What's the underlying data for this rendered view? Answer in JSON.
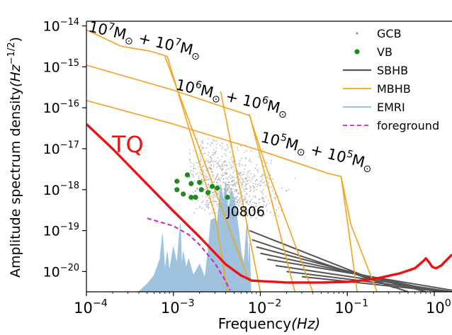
{
  "chart_data": {
    "type": "line",
    "xlabel_parts": {
      "main": "Frequency",
      "unit": "(Hz)"
    },
    "ylabel_parts": {
      "main": "Amplitude spectrum density",
      "unit_open": "(Hz",
      "unit_exp": "−1/2",
      "unit_close": ")"
    },
    "xscale": "log",
    "yscale": "log",
    "xlim": [
      0.0001,
      1.6
    ],
    "ylim": [
      3.2e-21,
      1.3e-14
    ],
    "x_ticks": [
      {
        "value": 0.0001,
        "base": "10",
        "exp": "−4"
      },
      {
        "value": 0.001,
        "base": "10",
        "exp": "−3"
      },
      {
        "value": 0.01,
        "base": "10",
        "exp": "−2"
      },
      {
        "value": 0.1,
        "base": "10",
        "exp": "−1"
      },
      {
        "value": 1,
        "base": "10",
        "exp": "0"
      }
    ],
    "y_ticks": [
      {
        "value": 1e-14,
        "base": "10",
        "exp": "−14"
      },
      {
        "value": 1e-15,
        "base": "10",
        "exp": "−15"
      },
      {
        "value": 1e-16,
        "base": "10",
        "exp": "−16"
      },
      {
        "value": 1e-17,
        "base": "10",
        "exp": "−17"
      },
      {
        "value": 1e-18,
        "base": "10",
        "exp": "−18"
      },
      {
        "value": 1e-19,
        "base": "10",
        "exp": "−19"
      },
      {
        "value": 1e-20,
        "base": "10",
        "exp": "−20"
      }
    ],
    "legend": {
      "placement": "top-right",
      "entries": [
        {
          "label": "GCB",
          "marker": "dot",
          "color": "#9a9a9a"
        },
        {
          "label": "VB",
          "marker": "circle",
          "color": "#1f8a1f"
        },
        {
          "label": "SBHB",
          "marker": "line",
          "color": "#555555"
        },
        {
          "label": "MBHB",
          "marker": "line",
          "color": "#f2a31b"
        },
        {
          "label": "EMRI",
          "marker": "line",
          "color": "#8fb9d9"
        },
        {
          "label": "foreground",
          "marker": "dashed",
          "color": "#cc1fcc"
        }
      ]
    },
    "annotations": [
      {
        "id": "tq",
        "text": "TQ",
        "color": "#ee1111"
      },
      {
        "id": "j0806",
        "text": "J0806",
        "color": "#000000"
      },
      {
        "id": "m7",
        "text_a": "10",
        "exp_a": "7",
        "sym_a": "M",
        "sub_a": "⊙",
        "plus": "+",
        "text_b": "10",
        "exp_b": "7",
        "sym_b": "M",
        "sub_b": "⊙"
      },
      {
        "id": "m6",
        "text_a": "10",
        "exp_a": "6",
        "sym_a": "M",
        "sub_a": "⊙",
        "plus": "+",
        "text_b": "10",
        "exp_b": "6",
        "sym_b": "M",
        "sub_b": "⊙"
      },
      {
        "id": "m5",
        "text_a": "10",
        "exp_a": "5",
        "sym_a": "M",
        "sub_a": "⊙",
        "plus": "+",
        "text_b": "10",
        "exp_b": "5",
        "sym_b": "M",
        "sub_b": "⊙"
      }
    ],
    "series": [
      {
        "name": "TQ",
        "color": "#ee1111",
        "style": "solid",
        "points": [
          [
            0.0001,
            4e-17
          ],
          [
            0.0002,
            1e-17
          ],
          [
            0.0004,
            2.2e-18
          ],
          [
            0.0007,
            6.5e-19
          ],
          [
            0.001,
            3e-19
          ],
          [
            0.002,
            7e-20
          ],
          [
            0.004,
            1.5e-20
          ],
          [
            0.006,
            8e-21
          ],
          [
            0.008,
            6e-21
          ],
          [
            0.02,
            5.4e-21
          ],
          [
            0.05,
            5.4e-21
          ],
          [
            0.1,
            5.6e-21
          ],
          [
            0.2,
            6.5e-21
          ],
          [
            0.4,
            9e-21
          ],
          [
            0.6,
            1.2e-20
          ],
          [
            0.75,
            1.8e-20
          ],
          [
            0.8,
            2.1e-20
          ],
          [
            0.87,
            1.7e-20
          ],
          [
            0.95,
            1.3e-20
          ],
          [
            1.05,
            1.2e-20
          ],
          [
            1.2,
            1.4e-20
          ],
          [
            1.6,
            2.6e-20
          ]
        ]
      },
      {
        "name": "MBHB",
        "color": "#f2a31b",
        "style": "solid",
        "tracks": [
          [
            [
              0.0001,
              8e-15
            ],
            [
              0.00025,
              3.2e-15
            ],
            [
              0.00055,
              2.4e-15
            ],
            [
              0.00085,
              1.8e-15
            ],
            [
              0.003,
              2.5e-19
            ],
            [
              0.0042,
              3.2e-21
            ]
          ],
          [
            [
              0.0001,
              1.1e-15
            ],
            [
              0.001,
              2.7e-16
            ],
            [
              0.0035,
              1.1e-16
            ],
            [
              0.0075,
              6.5e-17
            ],
            [
              0.012,
              3e-18
            ],
            [
              0.04,
              3.2e-21
            ]
          ],
          [
            [
              0.0001,
              1.5e-16
            ],
            [
              0.001,
              4e-17
            ],
            [
              0.01,
              9e-18
            ],
            [
              0.06,
              2.5e-18
            ],
            [
              0.085,
              2.1e-18
            ],
            [
              0.11,
              1.4e-19
            ],
            [
              0.22,
              3.2e-21
            ]
          ],
          [
            [
              0.0008,
              1.8e-15
            ],
            [
              0.0075,
              5.5e-21
            ]
          ],
          [
            [
              0.0035,
              2.5e-16
            ],
            [
              0.01,
              3.2e-21
            ]
          ],
          [
            [
              0.0075,
              7e-17
            ],
            [
              0.025,
              3.2e-21
            ]
          ],
          [
            [
              0.085,
              2.1e-18
            ],
            [
              0.13,
              3.2e-21
            ]
          ]
        ]
      },
      {
        "name": "SBHB",
        "color": "#555555",
        "style": "solid",
        "tracks": [
          [
            [
              0.0075,
              1e-19
            ],
            [
              0.35,
              4e-21
            ]
          ],
          [
            [
              0.008,
              6e-20
            ],
            [
              0.5,
              3.2e-21
            ]
          ],
          [
            [
              0.009,
              4e-20
            ],
            [
              0.8,
              3.2e-21
            ]
          ],
          [
            [
              0.01,
              2.8e-20
            ],
            [
              1.2,
              3.2e-21
            ]
          ],
          [
            [
              0.012,
              2e-20
            ],
            [
              1.6,
              3.5e-21
            ]
          ],
          [
            [
              0.015,
              1.4e-20
            ],
            [
              1.6,
              3.2e-21
            ]
          ],
          [
            [
              0.02,
              1e-20
            ],
            [
              1.5,
              3.2e-21
            ]
          ],
          [
            [
              0.03,
              7.5e-21
            ],
            [
              1.3,
              3.2e-21
            ]
          ]
        ]
      },
      {
        "name": "foreground",
        "color": "#cc1fcc",
        "style": "dashed",
        "points": [
          [
            0.0005,
            2e-19
          ],
          [
            0.001,
            1.3e-19
          ],
          [
            0.0015,
            8e-20
          ],
          [
            0.002,
            4.5e-20
          ],
          [
            0.003,
            1.6e-20
          ],
          [
            0.0038,
            7e-21
          ],
          [
            0.0045,
            3.5e-21
          ]
        ]
      },
      {
        "name": "EMRI",
        "color": "#8fb9d9",
        "style": "filled-noise",
        "points": [
          [
            0.0004,
            3.2e-21
          ],
          [
            0.0005,
            5e-21
          ],
          [
            0.0006,
            8e-21
          ],
          [
            0.0007,
            2e-20
          ],
          [
            0.00075,
            8e-20
          ],
          [
            0.0008,
            1e-20
          ],
          [
            0.00085,
            3e-20
          ],
          [
            0.0009,
            1e-20
          ],
          [
            0.001,
            4e-20
          ],
          [
            0.0011,
            1.5e-20
          ],
          [
            0.0012,
            1.5e-19
          ],
          [
            0.00125,
            1.2e-20
          ],
          [
            0.0013,
            3e-20
          ],
          [
            0.0014,
            1.2e-20
          ],
          [
            0.0015,
            2e-20
          ],
          [
            0.0017,
            8e-21
          ],
          [
            0.002,
            1.5e-20
          ],
          [
            0.0023,
            7e-21
          ],
          [
            0.0025,
            3e-20
          ],
          [
            0.0027,
            1.8e-19
          ],
          [
            0.003,
            2e-19
          ],
          [
            0.0032,
            1.5e-19
          ],
          [
            0.0035,
            1.3e-18
          ],
          [
            0.0038,
            5e-19
          ],
          [
            0.004,
            1.6e-18
          ],
          [
            0.0043,
            2e-19
          ],
          [
            0.0046,
            1e-18
          ],
          [
            0.005,
            6e-19
          ],
          [
            0.0055,
            1.5e-19
          ],
          [
            0.006,
            3e-20
          ],
          [
            0.0065,
            1.5e-20
          ],
          [
            0.007,
            1.5e-19
          ],
          [
            0.0073,
            8e-21
          ],
          [
            0.0075,
            5e-20
          ],
          [
            0.0078,
            3.2e-21
          ]
        ]
      },
      {
        "name": "VB",
        "color": "#1f8a1f",
        "style": "markers",
        "points": [
          [
            0.0011,
            1.6e-18
          ],
          [
            0.00145,
            2.3e-18
          ],
          [
            0.0016,
            1.4e-18
          ],
          [
            0.0011,
            1e-18
          ],
          [
            0.0013,
            7.8e-19
          ],
          [
            0.0016,
            6.5e-19
          ],
          [
            0.0018,
            6.5e-19
          ],
          [
            0.0021,
            1e-18
          ],
          [
            0.002,
            1.5e-18
          ],
          [
            0.0025,
            8.5e-19
          ],
          [
            0.0028,
            1.2e-18
          ],
          [
            0.0032,
            1.1e-18
          ],
          [
            0.0042,
            6.5e-19
          ]
        ]
      }
    ]
  }
}
